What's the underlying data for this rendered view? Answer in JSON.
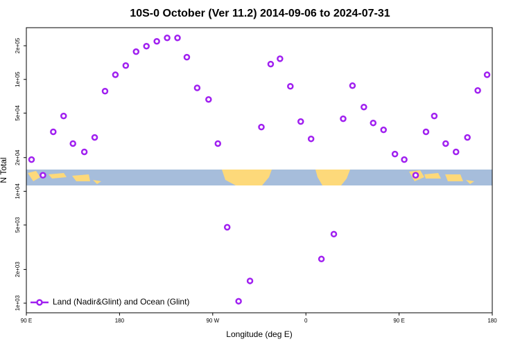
{
  "chart_data": {
    "type": "scatter",
    "title": "10S-0 October (Ver 11.2)   2014-09-06 to 2024-07-31",
    "x_label": "Longitude (deg E)",
    "y_label": "N Total",
    "log_y": true,
    "series": [
      {
        "name": "Land (Nadir&Glint) and Ocean (Glint)",
        "color": "#a020f0",
        "x": [
          95,
          106,
          116,
          126,
          135,
          146,
          156,
          166,
          176,
          186,
          196,
          206,
          216,
          226,
          236,
          245,
          255,
          266,
          275,
          284,
          295,
          306,
          317,
          326,
          335,
          345,
          355,
          365,
          375,
          387,
          396,
          405,
          416,
          425,
          435,
          446,
          455,
          466,
          476,
          484,
          495,
          505,
          516,
          526,
          535
        ],
        "values": [
          19200,
          13900,
          34000,
          47100,
          26700,
          22500,
          30300,
          78500,
          110000,
          133000,
          177000,
          198000,
          219000,
          235000,
          235000,
          158000,
          84000,
          66200,
          26700,
          4770,
          1040,
          1580,
          37500,
          137000,
          153000,
          86700,
          42000,
          29400,
          2480,
          4140,
          44500,
          87900,
          56600,
          40800,
          35400,
          21500,
          19200,
          13900,
          34000,
          47100,
          26700,
          22500,
          30300,
          79600,
          110000
        ]
      }
    ],
    "xlim": [
      90,
      540
    ],
    "xticks": [
      {
        "value": 90,
        "label": "90 E"
      },
      180,
      {
        "value": 270,
        "label": "90 W"
      },
      {
        "value": 360,
        "label": "0"
      },
      {
        "value": 450,
        "label": "90 E"
      },
      {
        "value": 540,
        "label": "180"
      }
    ],
    "ylim": [
      820,
      290000
    ],
    "yticks": [
      {
        "value": 1000,
        "label": "1e+03"
      },
      {
        "value": 2000,
        "label": "2e+03"
      },
      {
        "value": 5000,
        "label": "5e+03"
      },
      {
        "value": 10000,
        "label": "1e+04"
      },
      {
        "value": 20000,
        "label": "2e+04"
      },
      {
        "value": 50000,
        "label": "5e+04"
      },
      {
        "value": 100000,
        "label": "1e+05"
      },
      {
        "value": 200000,
        "label": "2e+05"
      }
    ],
    "legend": "bottom-left"
  }
}
